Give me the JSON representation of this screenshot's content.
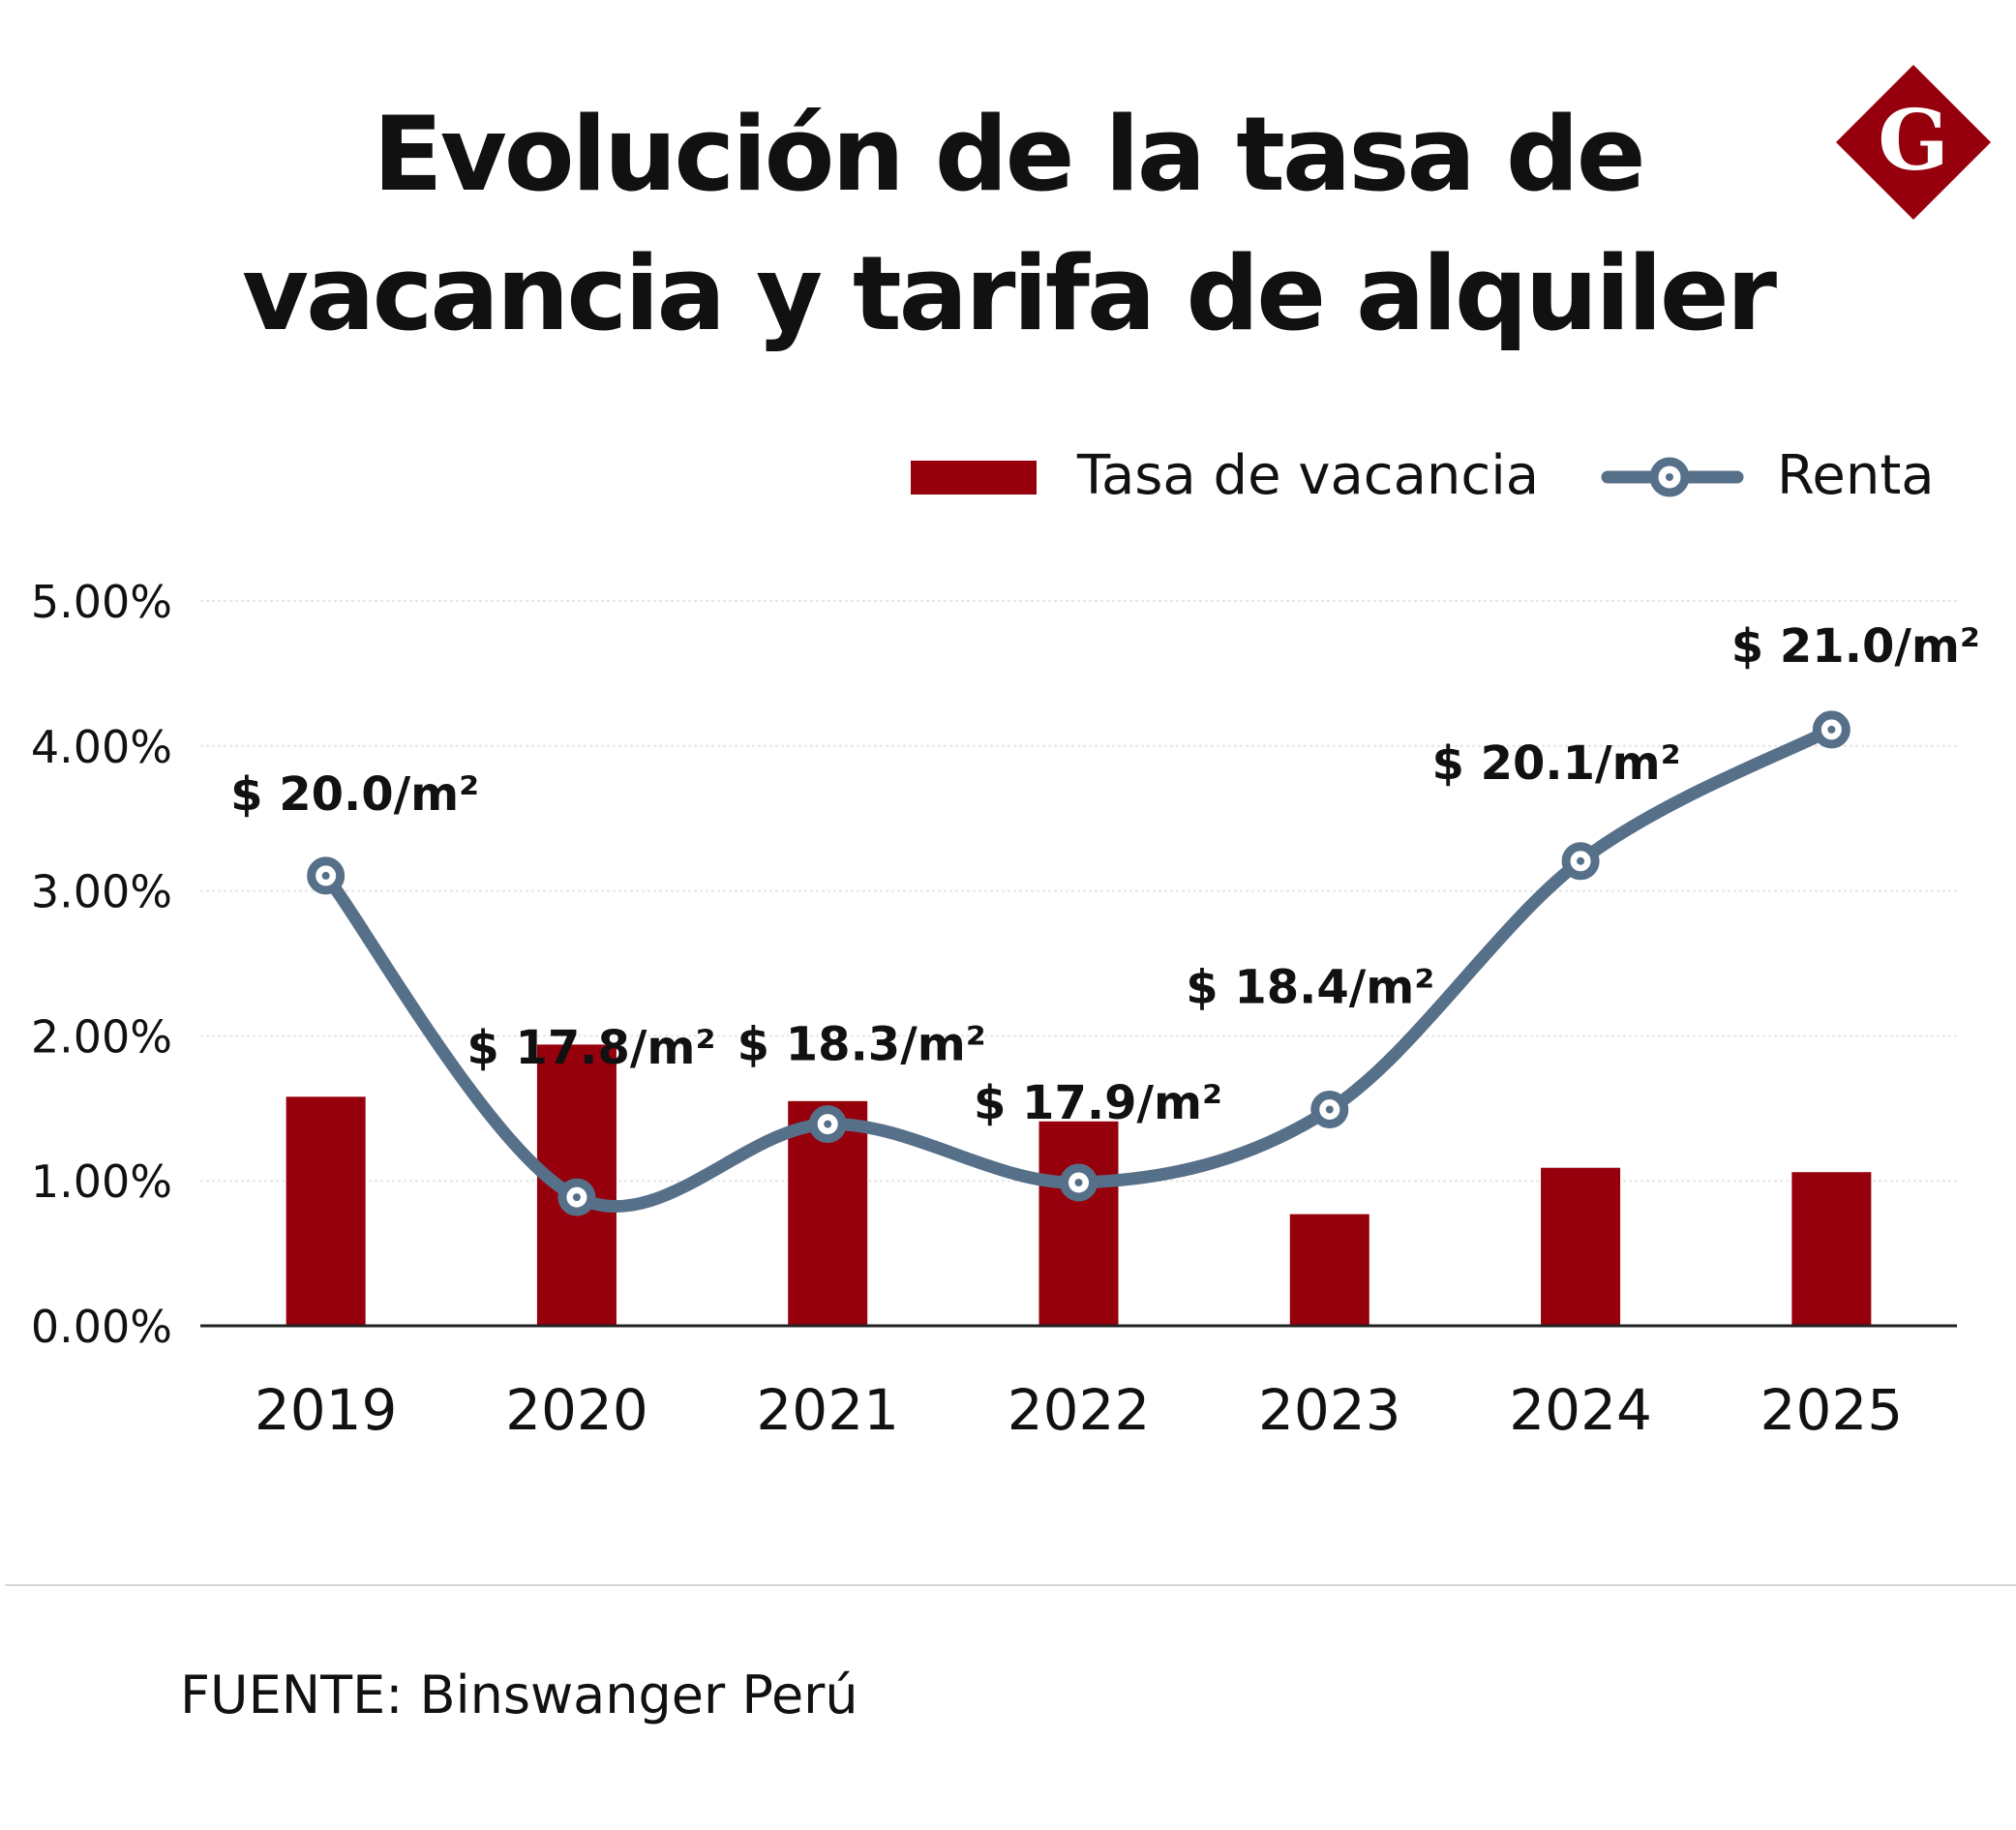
{
  "header": {
    "title_line1": "Evolución de la tasa de",
    "title_line2": "vacancia y tarifa de alquiler",
    "logo_letter": "G"
  },
  "colors": {
    "bar": "#95000c",
    "line": "#577089",
    "logo": "#95000c",
    "grid": "#e6e6e6",
    "axis": "#222222"
  },
  "chart_data": {
    "type": "bar+line",
    "title": "Evolución de la tasa de vacancia y tarifa de alquiler",
    "categories": [
      "2019",
      "2020",
      "2021",
      "2022",
      "2023",
      "2024",
      "2025"
    ],
    "ylim": [
      0,
      5
    ],
    "yticks": [
      "0.00%",
      "1.00%",
      "2.00%",
      "3.00%",
      "4.00%",
      "5.00%"
    ],
    "grid": true,
    "legend_position": "top-right",
    "series": [
      {
        "name": "Tasa de vacancia",
        "kind": "bar",
        "unit": "%",
        "values": [
          1.58,
          1.94,
          1.55,
          1.41,
          0.77,
          1.09,
          1.06
        ]
      },
      {
        "name": "Renta",
        "kind": "line",
        "unit": "USD/m²",
        "values": [
          20.0,
          17.8,
          18.3,
          17.9,
          18.4,
          20.1,
          21.0
        ],
        "labels": [
          "$ 20.0/m²",
          "$ 17.8/m²",
          "$ 18.3/m²",
          "$ 17.9/m²",
          "$ 18.4/m²",
          "$ 20.1/m²",
          "$ 21.0/m²"
        ]
      }
    ]
  },
  "footer": {
    "source": "FUENTE: Binswanger Perú"
  }
}
